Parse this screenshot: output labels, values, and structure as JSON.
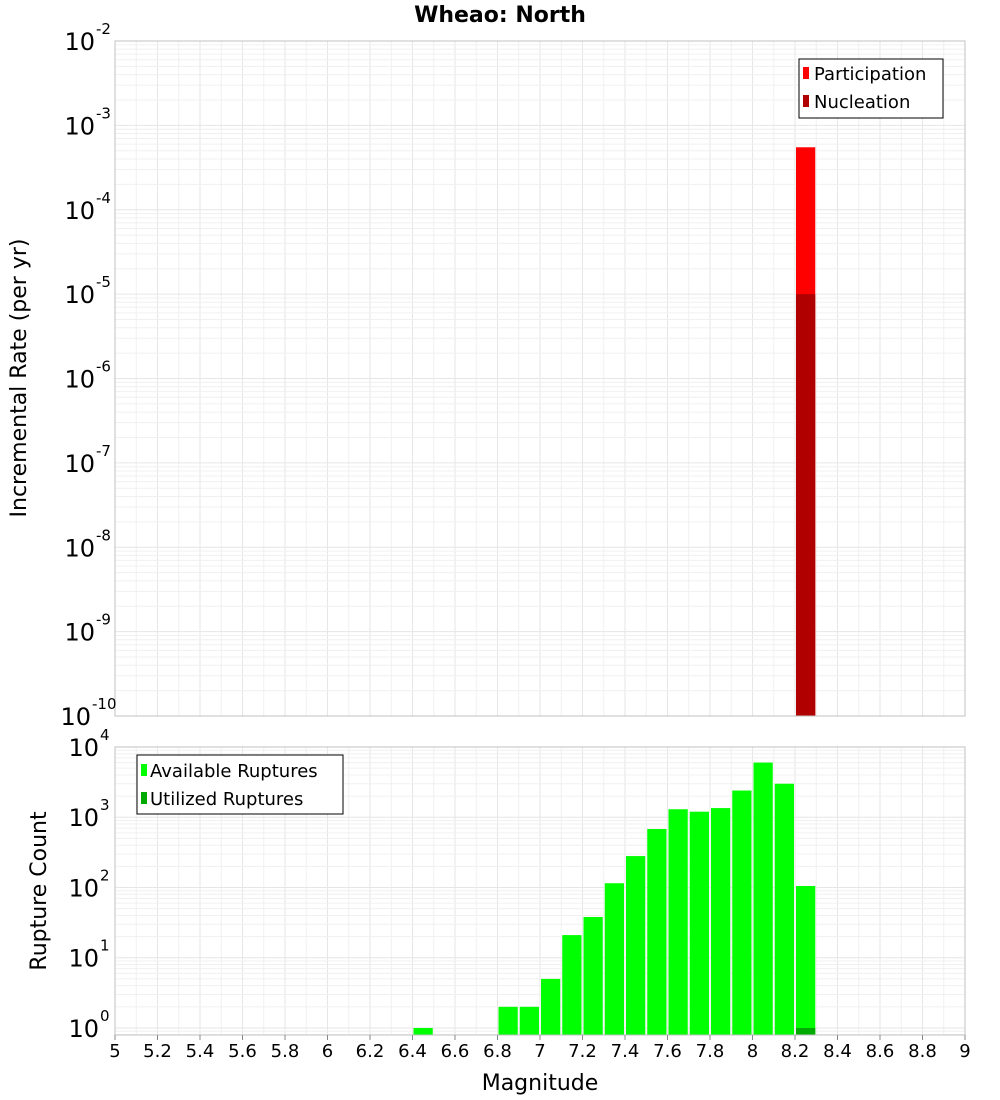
{
  "title": "Wheao: North",
  "chart_data": [
    {
      "type": "bar",
      "name": "rate-plot",
      "ylabel": "Incremental Rate (per yr)",
      "yscale": "log",
      "ylim_exp": [
        -10,
        -2
      ],
      "yticks": [
        {
          "base": "10",
          "exp": "-2"
        },
        {
          "base": "10",
          "exp": "-3"
        },
        {
          "base": "10",
          "exp": "-4"
        },
        {
          "base": "10",
          "exp": "-5"
        },
        {
          "base": "10",
          "exp": "-6"
        },
        {
          "base": "10",
          "exp": "-7"
        },
        {
          "base": "10",
          "exp": "-8"
        },
        {
          "base": "10",
          "exp": "-9"
        },
        {
          "base": "10",
          "exp": "-10"
        }
      ],
      "xlim": [
        5,
        9
      ],
      "bin_width": 0.1,
      "legend_position": "top-right",
      "legend": [
        {
          "label": "Participation",
          "color": "#ff0000"
        },
        {
          "label": "Nucleation",
          "color": "#b00000"
        }
      ],
      "series": [
        {
          "name": "Participation",
          "color": "#ff0000",
          "x": [
            8.25
          ],
          "values": [
            0.00055
          ]
        },
        {
          "name": "Nucleation",
          "color": "#b00000",
          "x": [
            8.25
          ],
          "values": [
            1e-05
          ]
        }
      ]
    },
    {
      "type": "bar",
      "name": "count-plot",
      "ylabel": "Rupture Count",
      "xlabel": "Magnitude",
      "yscale": "log",
      "ylim_exp": [
        -0.1,
        4
      ],
      "yticks": [
        {
          "base": "10",
          "exp": "4"
        },
        {
          "base": "10",
          "exp": "3"
        },
        {
          "base": "10",
          "exp": "2"
        },
        {
          "base": "10",
          "exp": "1"
        },
        {
          "base": "10",
          "exp": "0"
        }
      ],
      "xlim": [
        5,
        9
      ],
      "xticks": [
        "5",
        "5.2",
        "5.4",
        "5.6",
        "5.8",
        "6",
        "6.2",
        "6.4",
        "6.6",
        "6.8",
        "7",
        "7.2",
        "7.4",
        "7.6",
        "7.8",
        "8",
        "8.2",
        "8.4",
        "8.6",
        "8.8",
        "9"
      ],
      "bin_width": 0.1,
      "legend_position": "top-left",
      "legend": [
        {
          "label": "Available Ruptures",
          "color": "#00ff00"
        },
        {
          "label": "Utilized Ruptures",
          "color": "#00aa00"
        }
      ],
      "series": [
        {
          "name": "Available Ruptures",
          "color": "#00ff00",
          "x": [
            6.45,
            6.85,
            6.95,
            7.05,
            7.15,
            7.25,
            7.35,
            7.45,
            7.55,
            7.65,
            7.75,
            7.85,
            7.95,
            8.05,
            8.15,
            8.25
          ],
          "values": [
            1,
            2,
            2,
            5,
            21,
            38,
            115,
            280,
            680,
            1300,
            1200,
            1350,
            2400,
            6000,
            3000,
            105
          ]
        },
        {
          "name": "Utilized Ruptures",
          "color": "#00aa00",
          "x": [
            8.25
          ],
          "values": [
            1
          ]
        }
      ]
    }
  ]
}
